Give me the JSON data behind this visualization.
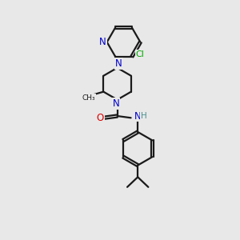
{
  "bg_color": "#e8e8e8",
  "bond_color": "#1a1a1a",
  "N_color": "#0000cc",
  "O_color": "#dd0000",
  "Cl_color": "#00aa00",
  "NH_color": "#4a9090",
  "line_width": 1.6,
  "doff": 0.07,
  "xlim": [
    0,
    10
  ],
  "ylim": [
    0,
    13
  ]
}
